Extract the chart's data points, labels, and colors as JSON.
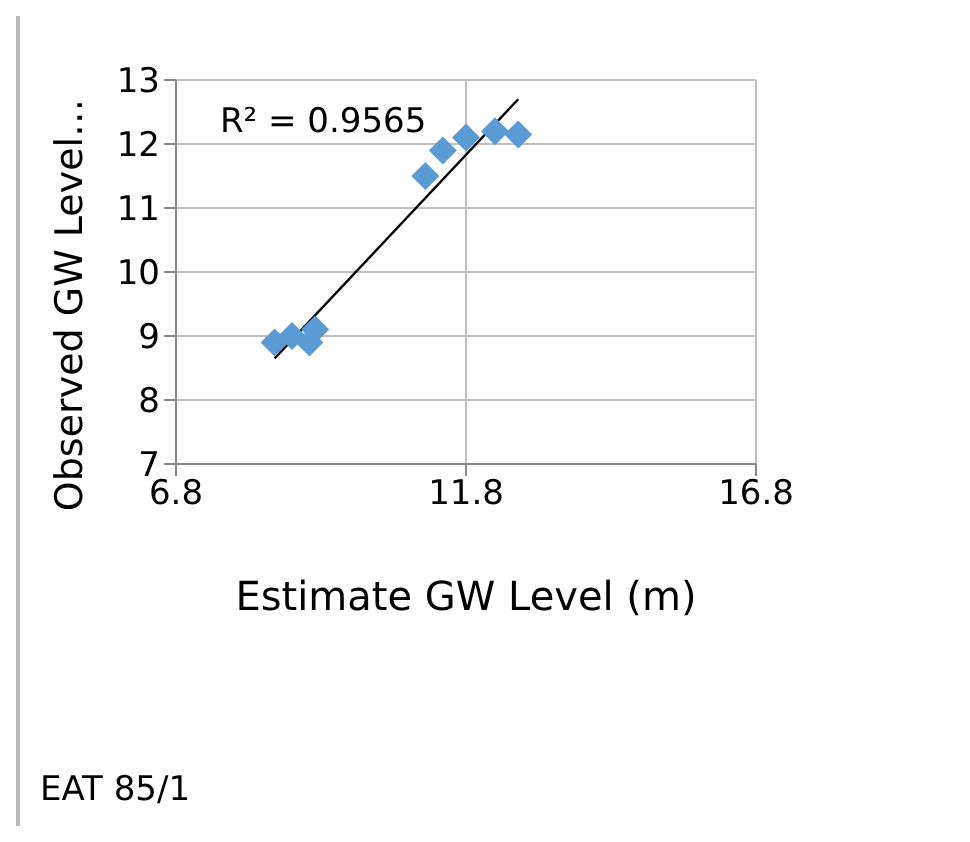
{
  "chart_data": {
    "type": "scatter",
    "xlabel": "Estimate GW Level (m)",
    "ylabel": "Observed GW Level…",
    "xlim": [
      6.8,
      16.8
    ],
    "xticks": [
      6.8,
      11.8,
      16.8
    ],
    "ylim": [
      7,
      13
    ],
    "yticks": [
      7,
      8,
      9,
      10,
      11,
      12,
      13
    ],
    "grid": true,
    "series": [
      {
        "color": "#5b9bd5",
        "marker": "diamond",
        "x": [
          8.5,
          8.8,
          9.1,
          9.2,
          11.1,
          11.4,
          11.8,
          12.3,
          12.7
        ],
        "values": [
          8.9,
          9.0,
          8.9,
          9.1,
          11.5,
          11.9,
          12.1,
          12.2,
          12.15
        ]
      },
      {
        "type": "line",
        "color": "#000000",
        "marker": "none",
        "x": [
          8.5,
          12.7
        ],
        "values": [
          8.65,
          12.7
        ]
      }
    ],
    "annotations": [
      "R² = 0.9565",
      "EAT 85/1"
    ]
  }
}
